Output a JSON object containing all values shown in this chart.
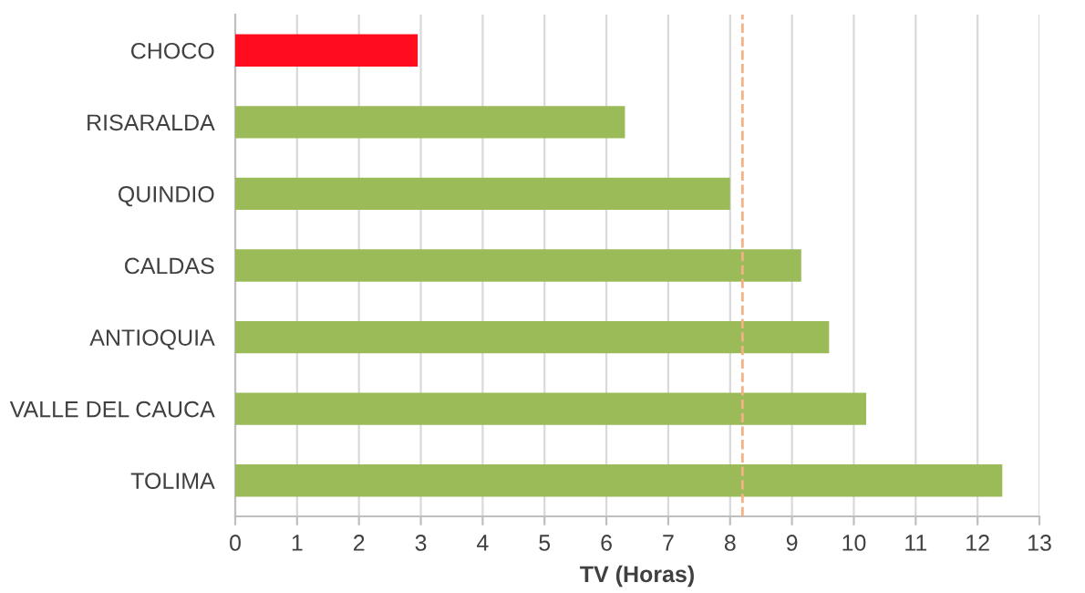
{
  "chart_data": {
    "type": "bar",
    "orientation": "horizontal",
    "xlabel": "TV (Horas)",
    "categories": [
      "CHOCO",
      "RISARALDA",
      "QUINDIO",
      "CALDAS",
      "ANTIOQUIA",
      "VALLE DEL CAUCA",
      "TOLIMA"
    ],
    "values": [
      2.95,
      6.3,
      8.0,
      9.15,
      9.6,
      10.2,
      12.4
    ],
    "colors": [
      "#ff0d1f",
      "#9bbb59",
      "#9bbb59",
      "#9bbb59",
      "#9bbb59",
      "#9bbb59",
      "#9bbb59"
    ],
    "xlim": [
      0,
      13
    ],
    "xticks": [
      0,
      1,
      2,
      3,
      4,
      5,
      6,
      7,
      8,
      9,
      10,
      11,
      12,
      13
    ],
    "grid": "x",
    "ref_lines": [
      {
        "axis": "x",
        "value": 8.2,
        "color": "#f4b183",
        "line_style": "dashed"
      }
    ]
  }
}
